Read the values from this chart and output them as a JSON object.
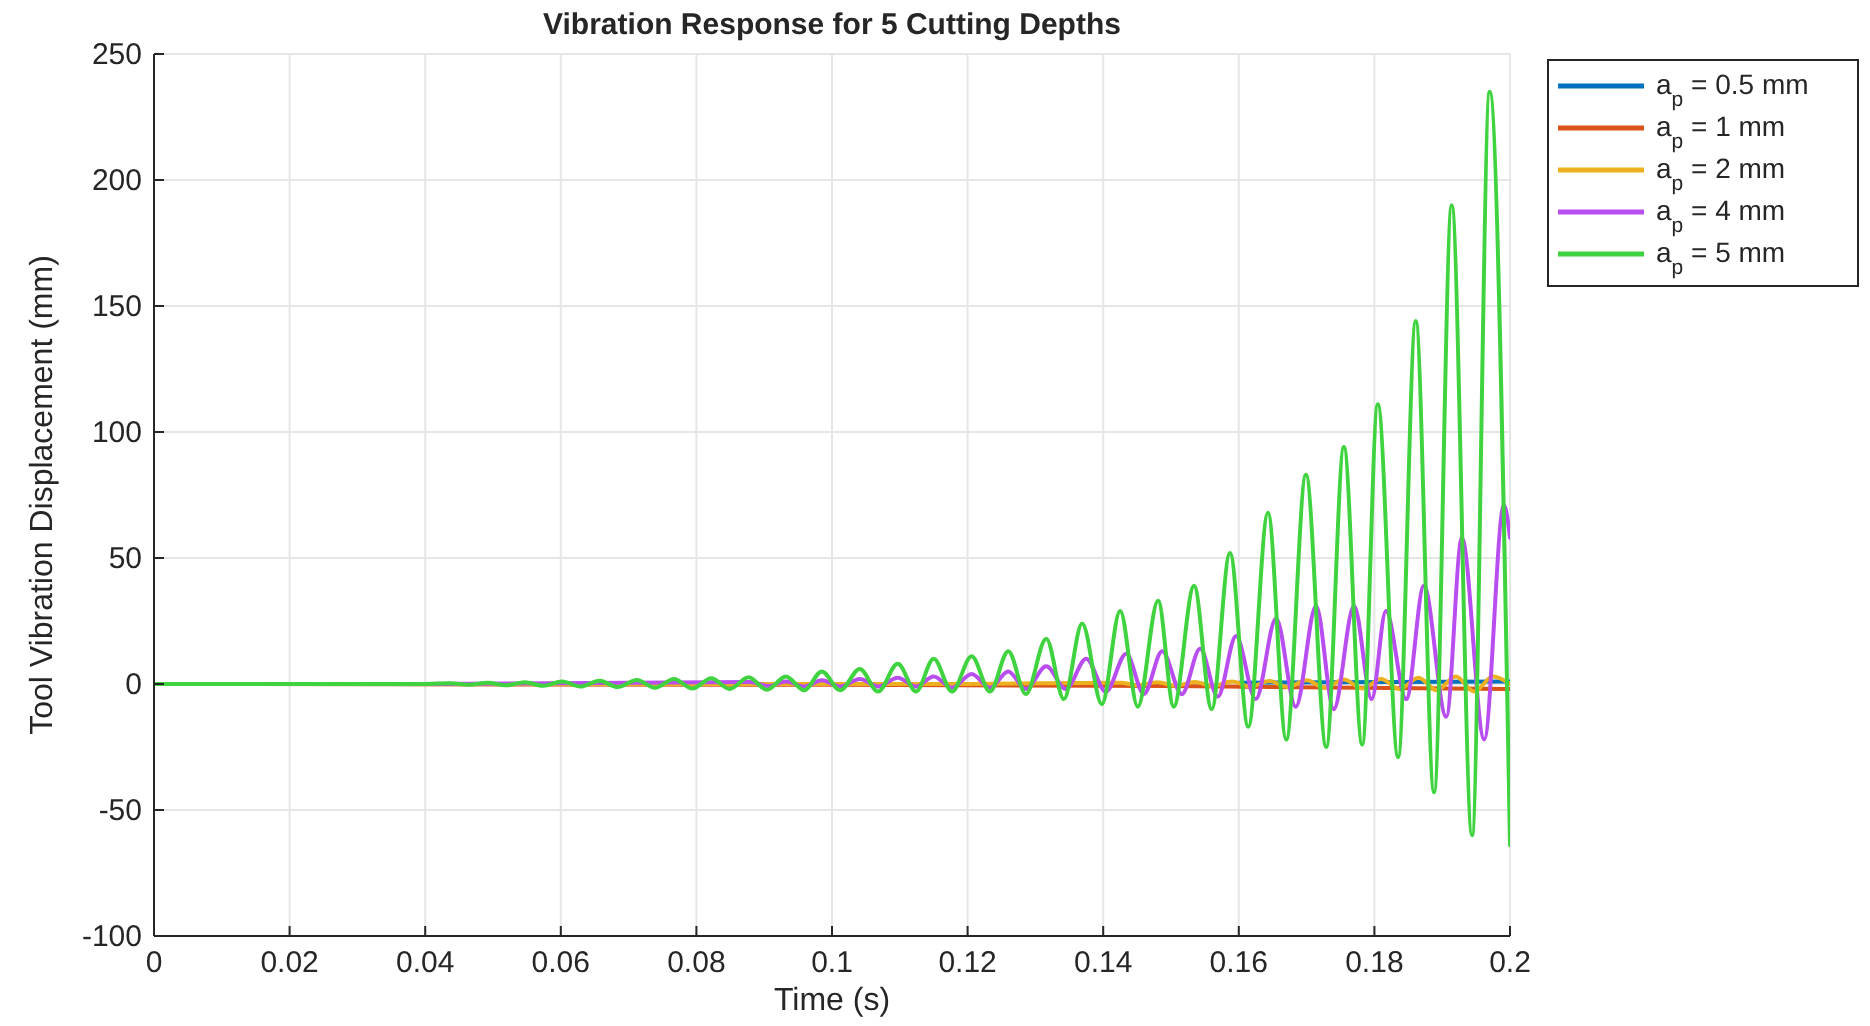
{
  "chart_data": {
    "type": "line",
    "title": "Vibration Response for 5 Cutting Depths",
    "xlabel": "Time (s)",
    "ylabel": "Tool Vibration Displacement (mm)",
    "xlim": [
      0,
      0.2
    ],
    "xticks": [
      0,
      0.02,
      0.04,
      0.06,
      0.08,
      0.1,
      0.12,
      0.14,
      0.16,
      0.18,
      0.2
    ],
    "ylim": [
      -100,
      250
    ],
    "yticks": [
      -100,
      -50,
      0,
      50,
      100,
      150,
      200,
      250
    ],
    "grid": true,
    "legend": "top right",
    "line_style": "solid",
    "marker": "none",
    "series": [
      {
        "name": "a$_{p}$ = 0.5 mm",
        "color": "#0072bd",
        "x": [
          0.16,
          0.2
        ],
        "values": [
          0.5,
          1
        ]
      },
      {
        "name": "a$_{p}$ = 1 mm",
        "color": "#d95319",
        "x": [
          0,
          0.1,
          0.15,
          0.2
        ],
        "values": [
          0,
          -0.3,
          -0.8,
          -2
        ]
      },
      {
        "name": "a$_{p}$ = 2 mm",
        "color": "#edb120",
        "x": [
          0,
          0.12,
          0.1425,
          0.1452,
          0.148,
          0.1507,
          0.1535,
          0.1562,
          0.159,
          0.1617,
          0.1645,
          0.1672,
          0.17,
          0.1727,
          0.1755,
          0.1782,
          0.181,
          0.1837,
          0.1865,
          0.1892,
          0.192,
          0.1947,
          0.1975,
          0.2
        ],
        "values": [
          0,
          0,
          0.5,
          -0.5,
          0.7,
          -0.7,
          0.8,
          -0.8,
          1,
          -1,
          1.2,
          -1.2,
          1.5,
          -1.5,
          1.8,
          -1.8,
          2,
          -2,
          2.5,
          -2.5,
          3,
          -3,
          3,
          0
        ]
      },
      {
        "name": "a$_{p}$ = 4 mm",
        "color": "#b94ef0",
        "x": [
          0,
          0.04,
          0.0879,
          0.0906,
          0.0932,
          0.0959,
          0.0985,
          0.1012,
          0.1041,
          0.1068,
          0.1097,
          0.1124,
          0.115,
          0.1177,
          0.1206,
          0.1233,
          0.126,
          0.1286,
          0.1316,
          0.1345,
          0.1375,
          0.1404,
          0.1434,
          0.146,
          0.1487,
          0.1516,
          0.1543,
          0.1569,
          0.1596,
          0.1625,
          0.1655,
          0.1684,
          0.1714,
          0.174,
          0.177,
          0.1796,
          0.1817,
          0.1847,
          0.1873,
          0.1906,
          0.1929,
          0.1962,
          0.1991,
          0.2
        ],
        "values": [
          0,
          0,
          0.8,
          -0.8,
          1,
          -1,
          1.5,
          -1,
          2,
          -1,
          2.5,
          -1,
          3,
          -1.5,
          4,
          -1.5,
          5,
          -2,
          7,
          -2,
          10,
          -3,
          12,
          -4,
          13,
          -4,
          14,
          -5,
          19,
          -6,
          26,
          -9,
          31,
          -10,
          31,
          -6,
          29,
          -6,
          39,
          -13,
          58,
          -22,
          71,
          58
        ]
      },
      {
        "name": "a$_{p}$ = 5 mm",
        "color": "#3fd33f",
        "x": [
          0,
          0.02,
          0.04,
          0.0437,
          0.0464,
          0.0492,
          0.0519,
          0.0547,
          0.0574,
          0.0602,
          0.0629,
          0.0657,
          0.0684,
          0.0712,
          0.0739,
          0.0767,
          0.0794,
          0.0822,
          0.0849,
          0.0877,
          0.0904,
          0.0932,
          0.0959,
          0.0985,
          0.1012,
          0.1041,
          0.1068,
          0.1097,
          0.1124,
          0.115,
          0.1177,
          0.1206,
          0.1233,
          0.126,
          0.1286,
          0.1316,
          0.1342,
          0.1369,
          0.1398,
          0.1425,
          0.1451,
          0.1481,
          0.1504,
          0.1534,
          0.156,
          0.1587,
          0.1614,
          0.1643,
          0.167,
          0.1699,
          0.1729,
          0.1755,
          0.1782,
          0.1805,
          0.1835,
          0.1861,
          0.1888,
          0.1914,
          0.1944,
          0.197,
          0.2
        ],
        "values": [
          0,
          0,
          0,
          0.3,
          -0.3,
          0.5,
          -0.5,
          0.7,
          -0.7,
          1,
          -1,
          1.3,
          -1.2,
          1.6,
          -1.5,
          2,
          -1.8,
          2.3,
          -2,
          2.7,
          -2.3,
          3,
          -2.5,
          5,
          -2.5,
          6,
          -3,
          8,
          -3,
          10,
          -3,
          11,
          -3,
          13,
          -4,
          18,
          -6,
          24,
          -8,
          29,
          -9,
          33,
          -9,
          39,
          -10,
          52,
          -17,
          68,
          -22,
          83,
          -25,
          94,
          -24,
          111,
          -29,
          144,
          -43,
          190,
          -60,
          235,
          -64
        ]
      }
    ]
  }
}
